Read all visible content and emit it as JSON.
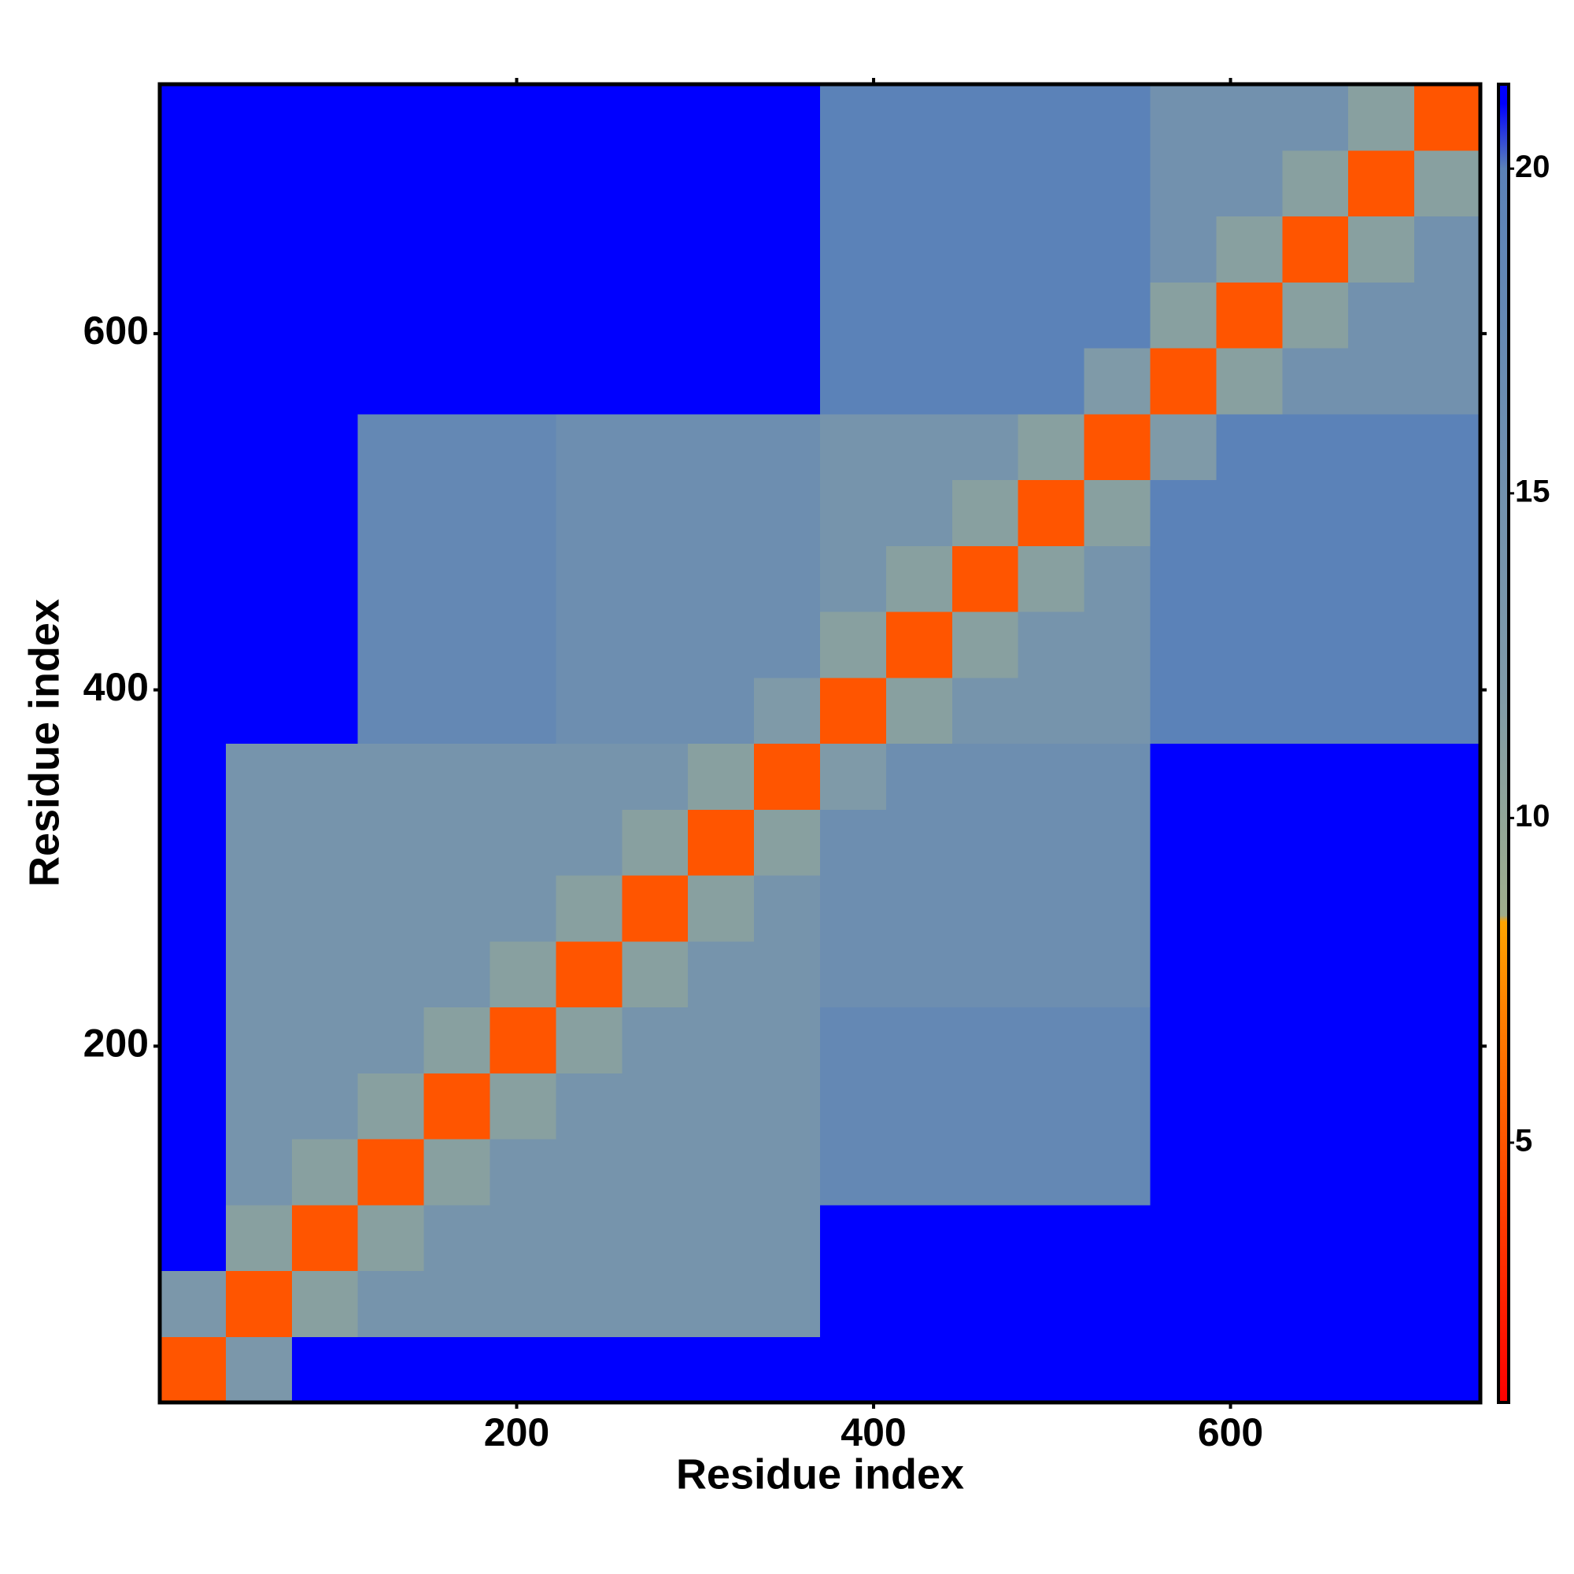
{
  "chart_data": {
    "type": "heatmap",
    "xlabel": "Residue index",
    "ylabel": "Residue index",
    "xlim": [
      0,
      740
    ],
    "ylim": [
      0,
      740
    ],
    "xticks": [
      200,
      400,
      600
    ],
    "yticks": [
      200,
      400,
      600
    ],
    "xbins": [
      0,
      37,
      74,
      111,
      148,
      185,
      222,
      259,
      296,
      333,
      370,
      407,
      444,
      481,
      518,
      555,
      592,
      629,
      666,
      703,
      740
    ],
    "ybins": [
      0,
      37,
      74,
      111,
      148,
      185,
      222,
      259,
      296,
      333,
      370,
      407,
      444,
      481,
      518,
      555,
      592,
      629,
      666,
      703,
      740
    ],
    "values": [
      [
        5,
        13,
        21,
        21,
        21,
        21,
        21,
        21,
        21,
        21,
        21,
        21,
        21,
        21,
        21,
        21,
        21,
        21,
        21,
        21
      ],
      [
        13,
        5,
        11,
        14,
        14,
        14,
        14,
        14,
        14,
        14,
        21,
        21,
        21,
        21,
        21,
        21,
        21,
        21,
        21,
        21
      ],
      [
        21,
        11,
        5,
        11,
        14,
        14,
        14,
        14,
        14,
        14,
        21,
        21,
        21,
        21,
        21,
        21,
        21,
        21,
        21,
        21
      ],
      [
        21,
        14,
        11,
        5,
        11,
        14,
        14,
        14,
        14,
        14,
        18,
        18,
        18,
        18,
        18,
        21,
        21,
        21,
        21,
        21
      ],
      [
        21,
        14,
        14,
        11,
        5,
        11,
        14,
        14,
        14,
        14,
        18,
        18,
        18,
        18,
        18,
        21,
        21,
        21,
        21,
        21
      ],
      [
        21,
        14,
        14,
        14,
        11,
        5,
        11,
        14,
        14,
        14,
        18,
        18,
        18,
        18,
        18,
        21,
        21,
        21,
        21,
        21
      ],
      [
        21,
        14,
        14,
        14,
        14,
        11,
        5,
        11,
        14,
        14,
        16,
        16,
        16,
        16,
        16,
        21,
        21,
        21,
        21,
        21
      ],
      [
        21,
        14,
        14,
        14,
        14,
        14,
        11,
        5,
        11,
        14,
        16,
        16,
        16,
        16,
        16,
        21,
        21,
        21,
        21,
        21
      ],
      [
        21,
        14,
        14,
        14,
        14,
        14,
        14,
        11,
        5,
        11,
        16,
        16,
        16,
        16,
        16,
        21,
        21,
        21,
        21,
        21
      ],
      [
        21,
        14,
        14,
        14,
        14,
        14,
        14,
        14,
        11,
        5,
        12,
        16,
        16,
        16,
        16,
        21,
        21,
        21,
        21,
        21
      ],
      [
        21,
        21,
        21,
        18,
        18,
        18,
        16,
        16,
        16,
        12,
        5,
        11,
        14,
        14,
        14,
        20,
        20,
        20,
        20,
        20
      ],
      [
        21,
        21,
        21,
        18,
        18,
        18,
        16,
        16,
        16,
        16,
        11,
        5,
        11,
        14,
        14,
        20,
        20,
        20,
        20,
        20
      ],
      [
        21,
        21,
        21,
        18,
        18,
        18,
        16,
        16,
        16,
        16,
        14,
        11,
        5,
        11,
        14,
        20,
        20,
        20,
        20,
        20
      ],
      [
        21,
        21,
        21,
        18,
        18,
        18,
        16,
        16,
        16,
        16,
        14,
        14,
        11,
        5,
        11,
        20,
        20,
        20,
        20,
        20
      ],
      [
        21,
        21,
        21,
        18,
        18,
        18,
        16,
        16,
        16,
        16,
        14,
        14,
        14,
        11,
        5,
        12,
        20,
        20,
        20,
        20
      ],
      [
        21,
        21,
        21,
        21,
        21,
        21,
        21,
        21,
        21,
        21,
        20,
        20,
        20,
        20,
        12,
        5,
        11,
        15,
        15,
        15
      ],
      [
        21,
        21,
        21,
        21,
        21,
        21,
        21,
        21,
        21,
        21,
        20,
        20,
        20,
        20,
        20,
        11,
        5,
        11,
        15,
        15
      ],
      [
        21,
        21,
        21,
        21,
        21,
        21,
        21,
        21,
        21,
        21,
        20,
        20,
        20,
        20,
        20,
        15,
        11,
        5,
        11,
        15
      ],
      [
        21,
        21,
        21,
        21,
        21,
        21,
        21,
        21,
        21,
        21,
        20,
        20,
        20,
        20,
        20,
        15,
        15,
        11,
        5,
        11
      ],
      [
        21,
        21,
        21,
        21,
        21,
        21,
        21,
        21,
        21,
        21,
        20,
        20,
        20,
        20,
        20,
        15,
        15,
        15,
        11,
        5
      ]
    ],
    "colorbar": {
      "lim": [
        1,
        21.3
      ],
      "ticks": [
        5,
        10,
        15,
        20
      ],
      "stops": [
        [
          1,
          "#ff0000"
        ],
        [
          7,
          "#ff8000"
        ],
        [
          8.4,
          "#ffa500"
        ],
        [
          8.5,
          "#9fae8c"
        ],
        [
          12,
          "#7f9aa8"
        ],
        [
          20,
          "#5b82b8"
        ],
        [
          21,
          "#0000ff"
        ]
      ]
    }
  }
}
